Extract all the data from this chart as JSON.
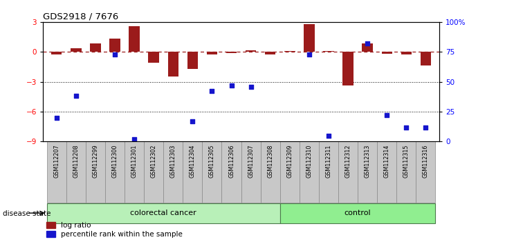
{
  "title": "GDS2918 / 7676",
  "samples": [
    "GSM112207",
    "GSM112208",
    "GSM112299",
    "GSM112300",
    "GSM112301",
    "GSM112302",
    "GSM112303",
    "GSM112304",
    "GSM112305",
    "GSM112306",
    "GSM112307",
    "GSM112308",
    "GSM112309",
    "GSM112310",
    "GSM112311",
    "GSM112312",
    "GSM112313",
    "GSM112314",
    "GSM112315",
    "GSM112316"
  ],
  "log_ratio": [
    -0.25,
    0.35,
    0.85,
    1.3,
    2.6,
    -1.1,
    -2.5,
    -1.7,
    -0.25,
    -0.15,
    0.15,
    -0.25,
    0.1,
    2.8,
    0.08,
    -3.4,
    0.85,
    -0.2,
    -0.28,
    -1.4
  ],
  "percentile": [
    20,
    38,
    null,
    73,
    2,
    null,
    null,
    17,
    42,
    47,
    46,
    null,
    null,
    73,
    5,
    null,
    82,
    22,
    12,
    12
  ],
  "colorectal_cancer_count": 12,
  "control_count": 8,
  "bar_color": "#9B1B1B",
  "dot_color": "#1515CC",
  "ylim_left": [
    -9,
    3
  ],
  "ylim_right": [
    0,
    100
  ],
  "yticks_left": [
    3,
    0,
    -3,
    -6,
    -9
  ],
  "yticks_right": [
    100,
    75,
    50,
    25,
    0
  ],
  "ytick_labels_right": [
    "100%",
    "75",
    "50",
    "25",
    "0"
  ],
  "dotted_lines": [
    -3,
    -6
  ],
  "legend_log_ratio": "log ratio",
  "legend_percentile": "percentile rank within the sample",
  "disease_state_label": "disease state",
  "colorectal_label": "colorectal cancer",
  "control_label": "control",
  "cell_bg": "#c8c8c8",
  "cell_border": "#888888",
  "cc_color": "#b8f0b8",
  "ctrl_color": "#90ee90"
}
